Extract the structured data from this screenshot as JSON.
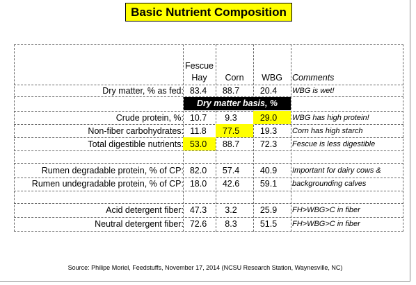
{
  "title": "Basic Nutrient Composition",
  "columns": {
    "col1_line1": "Fescue",
    "col1_line2": "Hay",
    "col2": "Corn",
    "col3": "WBG",
    "comments": "Comments"
  },
  "dry_matter_basis_label": "Dry matter basis, %",
  "rows": [
    {
      "label": "Dry matter, % as fed:",
      "fescue": "83.4",
      "corn": "88.7",
      "wbg": "20.4",
      "comment": "WBG is wet!"
    },
    {
      "label": "Crude protein, %:",
      "fescue": "10.7",
      "corn": "9.3",
      "wbg": "29.0",
      "comment": "WBG has high protein!"
    },
    {
      "label": "Non-fiber carbohydrates:",
      "fescue": "11.8",
      "corn": "77.5",
      "wbg": "19.3",
      "comment": "Corn has high starch"
    },
    {
      "label": "Total digestible nutrients:",
      "fescue": "53.0",
      "corn": "88.7",
      "wbg": "72.3",
      "comment": "Fescue is less digestible"
    },
    {
      "label": "Rumen degradable protein, % of CP:",
      "fescue": "82.0",
      "corn": "57.4",
      "wbg": "40.9",
      "comment": "Important for dairy cows &"
    },
    {
      "label": "Rumen undegradable protein, % of CP:",
      "fescue": "18.0",
      "corn": "42.6",
      "wbg": "59.1",
      "comment": "backgrounding calves"
    },
    {
      "label": "Acid detergent fiber:",
      "fescue": "47.3",
      "corn": "3.2",
      "wbg": "25.9",
      "comment": "FH>WBG>C in fiber"
    },
    {
      "label": "Neutral detergent fiber:",
      "fescue": "72.6",
      "corn": "8.3",
      "wbg": "51.5",
      "comment": "FH>WBG>C in fiber"
    }
  ],
  "highlight_color": "#ffff00",
  "source": "Source: Philipe Moriel, Feedstuffs, November 17, 2014 (NCSU Research Station, Waynesville, NC)"
}
